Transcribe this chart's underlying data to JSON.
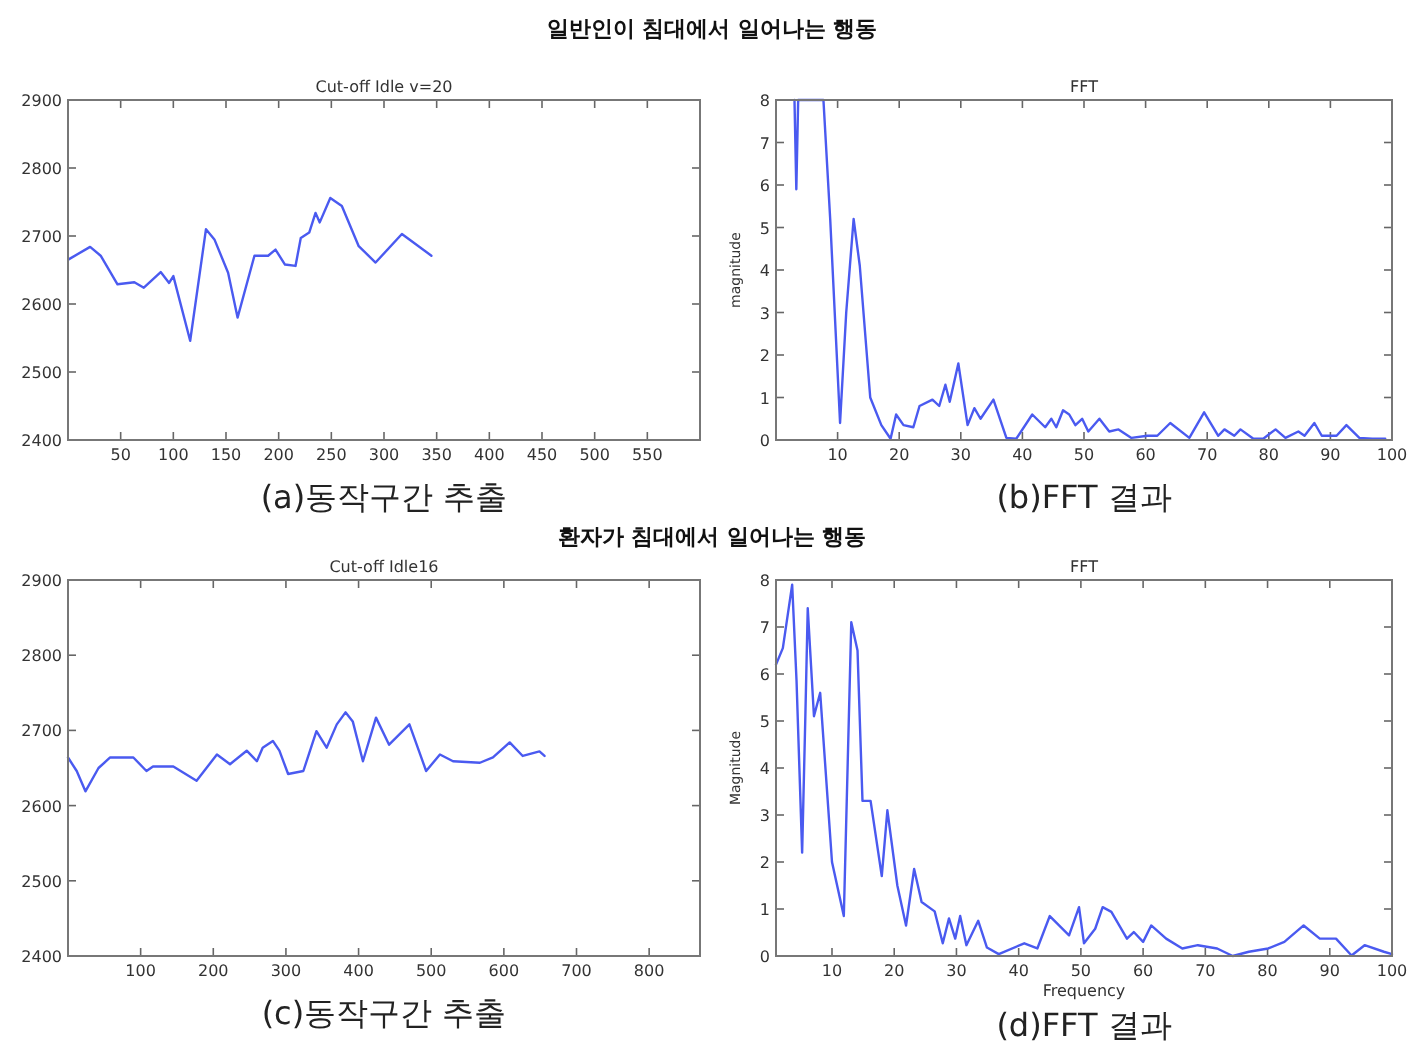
{
  "chart_data": [
    {
      "type": "line",
      "title": "Cut-off Idle  v=20",
      "annotations": [
        "일반인이 침대에서 일어나는 행동",
        "(a)동작구간 추출"
      ],
      "xlim": [
        0,
        600
      ],
      "xticks": [
        50,
        100,
        150,
        200,
        250,
        300,
        350,
        400,
        450,
        500,
        550
      ],
      "ylim": [
        2400,
        2900
      ],
      "yticks": [
        2400,
        2500,
        2600,
        2700,
        2800,
        2900
      ],
      "series": [
        {
          "color": "#4a5af0",
          "x": [
            1,
            21,
            31,
            47,
            63,
            72,
            88,
            96,
            100,
            116,
            131,
            139,
            152,
            161,
            177,
            190,
            197,
            206,
            216,
            221,
            229,
            235,
            239,
            249,
            260,
            276,
            292,
            317,
            345
          ],
          "values": [
            2666,
            2684,
            2671,
            2629,
            2632,
            2624,
            2647,
            2631,
            2641,
            2546,
            2710,
            2695,
            2646,
            2580,
            2671,
            2671,
            2680,
            2658,
            2656,
            2697,
            2705,
            2734,
            2720,
            2756,
            2744,
            2685,
            2661,
            2703,
            2671
          ]
        }
      ]
    },
    {
      "type": "line",
      "title": "FFT",
      "ylabel": "magnitude",
      "annotations": [
        "(b)FFT 결과"
      ],
      "xlim": [
        0,
        100
      ],
      "xticks": [
        10,
        20,
        30,
        40,
        50,
        60,
        70,
        80,
        90,
        100
      ],
      "ylim": [
        0,
        8
      ],
      "yticks": [
        0,
        1,
        2,
        3,
        4,
        5,
        6,
        7,
        8
      ],
      "series": [
        {
          "color": "#4a5af0",
          "x": [
            3.0,
            3.3,
            3.6,
            7.7,
            8.8,
            10.4,
            11.4,
            12.6,
            13.6,
            15.3,
            17.1,
            18.6,
            19.5,
            20.7,
            22.3,
            23.3,
            25.4,
            26.5,
            27.5,
            28.2,
            29.6,
            31.1,
            32.2,
            33.2,
            35.3,
            37.4,
            39.0,
            41.6,
            43.7,
            44.7,
            45.5,
            46.6,
            47.6,
            48.6,
            49.7,
            50.7,
            52.5,
            54.1,
            55.6,
            57.7,
            60.3,
            61.9,
            64.0,
            67.1,
            69.5,
            71.8,
            72.8,
            74.4,
            75.4,
            77.5,
            79.1,
            81.1,
            82.7,
            84.8,
            85.8,
            87.4,
            88.6,
            91.0,
            92.6,
            94.7,
            96.8,
            98.9
          ],
          "values": [
            8,
            5.9,
            8,
            8,
            5.2,
            0.4,
            3.0,
            5.2,
            4.1,
            1.0,
            0.35,
            0.03,
            0.6,
            0.35,
            0.3,
            0.8,
            0.95,
            0.8,
            1.3,
            0.9,
            1.8,
            0.35,
            0.75,
            0.5,
            0.95,
            0.05,
            0.03,
            0.6,
            0.3,
            0.5,
            0.3,
            0.7,
            0.6,
            0.35,
            0.5,
            0.2,
            0.5,
            0.2,
            0.25,
            0.05,
            0.1,
            0.1,
            0.4,
            0.05,
            0.65,
            0.1,
            0.25,
            0.1,
            0.25,
            0.03,
            0.03,
            0.25,
            0.05,
            0.2,
            0.1,
            0.4,
            0.1,
            0.1,
            0.35,
            0.05,
            0.03,
            0.03
          ]
        }
      ]
    },
    {
      "type": "line",
      "title": "Cut-off Idle16",
      "annotations": [
        "환자가 침대에서 일어나는 행동",
        "(c)동작구간 추출"
      ],
      "xlim": [
        0,
        870
      ],
      "xticks": [
        100,
        200,
        300,
        400,
        500,
        600,
        700,
        800
      ],
      "ylim": [
        2400,
        2900
      ],
      "yticks": [
        2400,
        2500,
        2600,
        2700,
        2800,
        2900
      ],
      "series": [
        {
          "color": "#4a5af0",
          "x": [
            0,
            12,
            24,
            42,
            58,
            90,
            108,
            117,
            145,
            177,
            205,
            223,
            246,
            260,
            268,
            282,
            291,
            303,
            324,
            342,
            356,
            370,
            382,
            392,
            406,
            424,
            442,
            470,
            493,
            512,
            530,
            567,
            585,
            608,
            626,
            649,
            656
          ],
          "values": [
            2664,
            2646,
            2619,
            2650,
            2664,
            2664,
            2646,
            2652,
            2652,
            2633,
            2668,
            2655,
            2673,
            2659,
            2677,
            2686,
            2673,
            2642,
            2646,
            2699,
            2677,
            2708,
            2724,
            2712,
            2659,
            2717,
            2681,
            2708,
            2646,
            2668,
            2659,
            2657,
            2664,
            2684,
            2666,
            2672,
            2666
          ]
        }
      ]
    },
    {
      "type": "line",
      "title": "FFT",
      "xlabel": "Frequency",
      "ylabel": "Magnitude",
      "annotations": [
        "(d)FFT 결과"
      ],
      "xlim": [
        1,
        100
      ],
      "xticks": [
        10,
        20,
        30,
        40,
        50,
        60,
        70,
        80,
        90,
        100
      ],
      "ylim": [
        0,
        8
      ],
      "yticks": [
        0,
        1,
        2,
        3,
        4,
        5,
        6,
        7,
        8
      ],
      "series": [
        {
          "color": "#4a5af0",
          "x": [
            1,
            2.1,
            3.6,
            4.3,
            5.2,
            5.7,
            6.1,
            7.1,
            8.1,
            10.0,
            11.9,
            13.1,
            14.1,
            14.9,
            16.2,
            18.0,
            18.9,
            20.5,
            21.9,
            23.2,
            24.4,
            26.5,
            27.8,
            28.8,
            29.8,
            30.6,
            31.6,
            33.5,
            34.9,
            36.8,
            40.9,
            43.0,
            45.0,
            48.1,
            49.7,
            50.5,
            52.3,
            53.5,
            54.9,
            57.4,
            58.5,
            60.0,
            61.3,
            63.7,
            66.3,
            68.8,
            71.9,
            74.4,
            77.0,
            80.1,
            82.7,
            85.8,
            88.4,
            91.0,
            93.5,
            95.6,
            98.7,
            100
          ],
          "values": [
            6.2,
            6.55,
            7.9,
            5.85,
            2.2,
            5.0,
            7.4,
            5.1,
            5.6,
            2.0,
            0.85,
            7.1,
            6.5,
            3.3,
            3.3,
            1.7,
            3.1,
            1.5,
            0.65,
            1.85,
            1.15,
            0.95,
            0.27,
            0.8,
            0.37,
            0.85,
            0.23,
            0.75,
            0.18,
            0.04,
            0.27,
            0.16,
            0.85,
            0.44,
            1.04,
            0.27,
            0.58,
            1.04,
            0.94,
            0.37,
            0.51,
            0.3,
            0.65,
            0.37,
            0.16,
            0.23,
            0.16,
            0.0,
            0.09,
            0.16,
            0.3,
            0.65,
            0.37,
            0.37,
            0.01,
            0.23,
            0.09,
            0.04
          ]
        }
      ]
    }
  ]
}
